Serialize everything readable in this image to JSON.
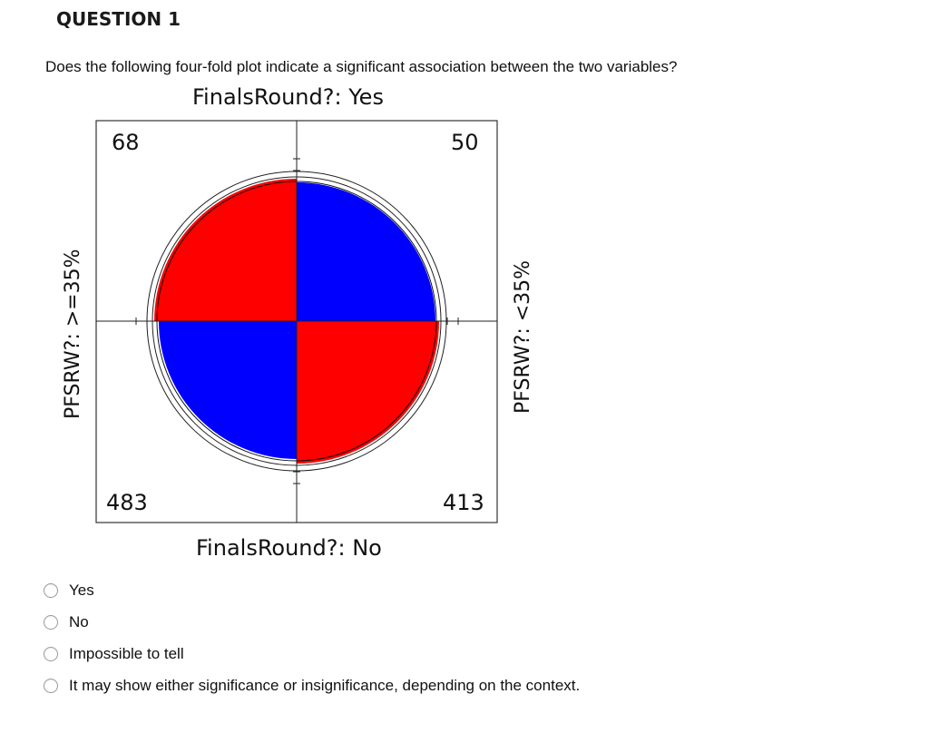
{
  "question": {
    "header": "QUESTION 1",
    "text": "Does the following four-fold plot indicate a significant association between the two variables?"
  },
  "plot": {
    "top_label": "FinalsRound?: Yes",
    "bottom_label": "FinalsRound?: No",
    "left_label": "PFSRW?: >=35%",
    "right_label": "PFSRW?: <35%",
    "counts": {
      "top_left": "68",
      "top_right": "50",
      "bottom_left": "483",
      "bottom_right": "413"
    },
    "colors": {
      "positive": "#ff0000",
      "negative": "#0000ff"
    }
  },
  "options": [
    {
      "label": "Yes"
    },
    {
      "label": "No"
    },
    {
      "label": "Impossible to tell"
    },
    {
      "label": "It may show either significance or insignificance, depending on the context."
    }
  ]
}
